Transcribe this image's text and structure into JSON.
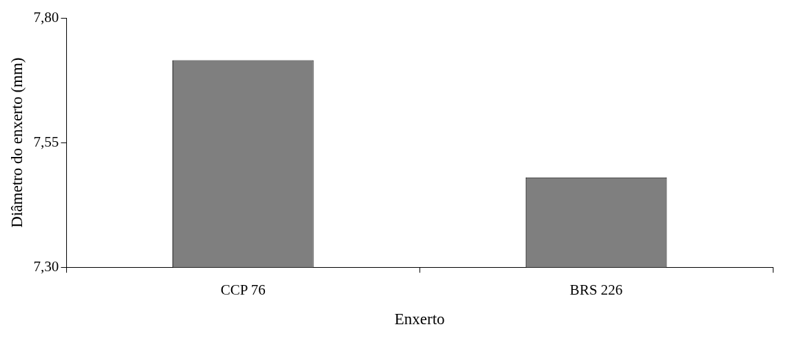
{
  "chart_data": {
    "type": "bar",
    "xlabel": "Enxerto",
    "ylabel": "Diâmetro do enxerto (mm)",
    "categories": [
      "CCP 76",
      "BRS 226"
    ],
    "values": [
      7.715,
      7.48
    ],
    "color": "#7f7f7f",
    "ylim": [
      7.3,
      7.8
    ],
    "yticks": [
      {
        "value": 7.3,
        "label": "7,30"
      },
      {
        "value": 7.55,
        "label": "7,55"
      },
      {
        "value": 7.8,
        "label": "7,80"
      }
    ],
    "grid": false,
    "legend": false
  }
}
